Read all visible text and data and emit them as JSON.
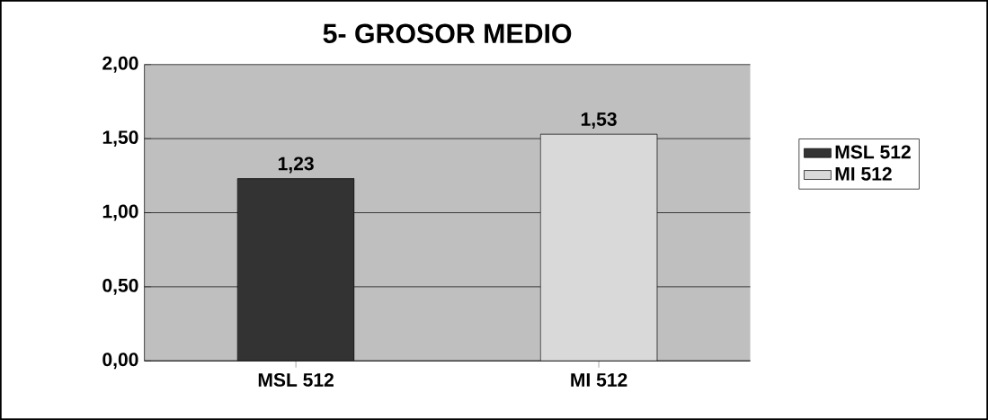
{
  "chart_data": {
    "type": "bar",
    "title": "5- GROSOR MEDIO",
    "categories": [
      "MSL 512",
      "MI 512"
    ],
    "series": [
      {
        "name": "MSL 512",
        "color": "#333333",
        "values": [
          1.23,
          null
        ],
        "value_labels": [
          "1,23",
          null
        ]
      },
      {
        "name": "MI 512",
        "color": "#d9d9d9",
        "values": [
          null,
          1.53
        ],
        "value_labels": [
          null,
          "1,53"
        ]
      }
    ],
    "ylim": [
      0,
      2
    ],
    "yticks": [
      {
        "value": 0,
        "label": "0,00"
      },
      {
        "value": 0.5,
        "label": "0,50"
      },
      {
        "value": 1,
        "label": "1,00"
      },
      {
        "value": 1.5,
        "label": "1,50"
      },
      {
        "value": 2,
        "label": "2,00"
      }
    ],
    "grid": "y",
    "legend": "right"
  }
}
